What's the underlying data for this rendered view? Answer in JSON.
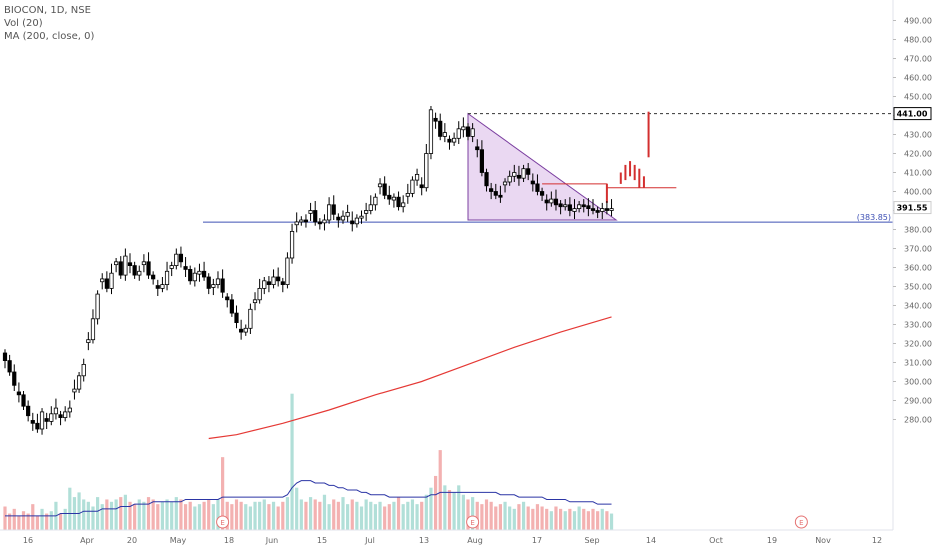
{
  "legend": {
    "symbol": "BIOCON, 1D, NSE",
    "volume": "Vol (20)",
    "moving_average": "MA (200, close, 0)"
  },
  "colors": {
    "up": "#ffffff",
    "down": "#000000",
    "wick": "#000000",
    "volume_up": "#a8dcd4",
    "volume_down": "#f2a8a8",
    "volume_ma": "#2b35a5",
    "ma200": "#e53935",
    "support_line": "#3f51b5",
    "triangle_fill": "#d8b8e8",
    "triangle_stroke": "#7b3fa0",
    "projection": "#d32f2f",
    "earnings": "#e57373"
  },
  "chart_data": {
    "type": "candlestick",
    "ylim": [
      270,
      495
    ],
    "x_tick_labels": [
      "16",
      "Apr",
      "20",
      "May",
      "18",
      "Jun",
      "15",
      "Jul",
      "13",
      "Aug",
      "17",
      "Sep",
      "14",
      "Oct",
      "19",
      "Nov",
      "12"
    ],
    "y_ticks": [
      280,
      290,
      300,
      310,
      320,
      330,
      340,
      350,
      360,
      370,
      380,
      390,
      400,
      410,
      420,
      430,
      440,
      450,
      460,
      470,
      480,
      490
    ],
    "y_tick_labels": [
      "280.00",
      "290.00",
      "300.00",
      "310.00",
      "320.00",
      "330.00",
      "340.00",
      "350.00",
      "360.00",
      "370.00",
      "380.00",
      "390.00",
      "400.00",
      "410.00",
      "420.00",
      "430.00",
      "440.00",
      "450.00",
      "460.00",
      "470.00",
      "480.00",
      "490.00"
    ],
    "price_close": [
      311,
      305,
      298,
      293,
      287,
      282,
      278,
      275,
      284,
      279,
      283,
      286,
      281,
      284,
      286,
      296,
      303,
      309,
      322,
      333,
      346,
      354,
      349,
      357,
      363,
      356,
      366,
      361,
      356,
      358,
      363,
      356,
      354,
      349,
      351,
      358,
      361,
      367,
      363,
      359,
      353,
      357,
      358,
      355,
      349,
      351,
      354,
      347,
      343,
      336,
      331,
      326,
      328,
      338,
      343,
      349,
      353,
      351,
      355,
      353,
      351,
      365,
      379,
      384,
      385,
      384,
      390,
      384,
      383,
      385,
      393,
      388,
      385,
      387,
      389,
      383,
      386,
      387,
      390,
      393,
      397,
      404,
      398,
      396,
      397,
      392,
      394,
      399,
      406,
      409,
      402,
      420,
      443,
      437,
      429,
      431,
      426,
      428,
      433,
      434,
      429,
      433,
      422,
      410,
      403,
      400,
      398,
      397,
      405,
      408,
      410,
      407,
      412,
      409,
      404,
      400,
      398,
      394,
      396,
      393,
      392,
      393,
      390,
      391,
      393,
      392,
      391,
      390,
      389,
      391,
      390,
      391
    ],
    "volume": [
      10,
      7,
      9,
      6,
      8,
      7,
      11,
      6,
      9,
      7,
      8,
      12,
      7,
      9,
      18,
      14,
      16,
      13,
      12,
      10,
      14,
      11,
      13,
      12,
      13,
      14,
      15,
      12,
      11,
      13,
      12,
      14,
      13,
      11,
      12,
      13,
      12,
      14,
      13,
      11,
      12,
      10,
      11,
      12,
      13,
      11,
      13,
      31,
      12,
      11,
      13,
      12,
      11,
      10,
      12,
      12,
      13,
      11,
      12,
      10,
      12,
      14,
      58,
      18,
      13,
      12,
      14,
      13,
      12,
      15,
      11,
      13,
      12,
      14,
      11,
      13,
      12,
      10,
      13,
      12,
      11,
      12,
      10,
      11,
      12,
      14,
      11,
      12,
      13,
      11,
      12,
      15,
      18,
      23,
      34,
      19,
      17,
      16,
      19,
      15,
      13,
      14,
      12,
      11,
      13,
      12,
      10,
      11,
      12,
      10,
      9,
      11,
      12,
      10,
      9,
      11,
      10,
      9,
      8,
      10,
      9,
      8,
      9,
      8,
      10,
      9,
      8,
      9,
      8,
      9,
      8,
      7
    ],
    "volume_ma": [
      6,
      6,
      6,
      6,
      6,
      6,
      6,
      6,
      6,
      6,
      6,
      6,
      7,
      7,
      7,
      7,
      7,
      8,
      8,
      8,
      8,
      9,
      9,
      9,
      9,
      10,
      10,
      10,
      11,
      11,
      11,
      11,
      12,
      12,
      12,
      12,
      12,
      12,
      12,
      13,
      13,
      13,
      13,
      13,
      13,
      13,
      13,
      14,
      14,
      14,
      14,
      14,
      14,
      14,
      14,
      14,
      14,
      14,
      14,
      14,
      14,
      15,
      18,
      20,
      21,
      21,
      21,
      20,
      20,
      20,
      19,
      19,
      18,
      18,
      17,
      17,
      17,
      16,
      16,
      15,
      15,
      15,
      15,
      14,
      14,
      14,
      14,
      14,
      14,
      14,
      14,
      14,
      15,
      15,
      16,
      16,
      16,
      16,
      16,
      16,
      16,
      16,
      16,
      16,
      16,
      16,
      16,
      15,
      15,
      15,
      15,
      14,
      14,
      14,
      14,
      14,
      14,
      13,
      13,
      13,
      13,
      13,
      12,
      12,
      12,
      12,
      12,
      12,
      11,
      11,
      11,
      11
    ],
    "ma200": [
      {
        "i": 44,
        "v": 270
      },
      {
        "i": 50,
        "v": 272
      },
      {
        "i": 60,
        "v": 278
      },
      {
        "i": 70,
        "v": 285
      },
      {
        "i": 80,
        "v": 293
      },
      {
        "i": 90,
        "v": 300
      },
      {
        "i": 100,
        "v": 309
      },
      {
        "i": 110,
        "v": 318
      },
      {
        "i": 120,
        "v": 326
      },
      {
        "i": 131,
        "v": 334
      }
    ],
    "support_level": 383.85,
    "support_label": "(383.85)",
    "target_level": 441.0,
    "target_label": "441.00",
    "last_price": 391.55,
    "last_price_label": "391.55",
    "triangle": {
      "start_i": 100,
      "top": 441,
      "end_i": 132,
      "bottom": 385
    },
    "breakout_box": {
      "start_i": 116,
      "end_i": 145,
      "level": 402,
      "top": 404
    },
    "projection_bars": [
      {
        "i": 130,
        "low": 394,
        "high": 404
      },
      {
        "i": 133,
        "low": 404,
        "high": 410
      },
      {
        "i": 134,
        "low": 406,
        "high": 414
      },
      {
        "i": 135,
        "low": 408,
        "high": 416
      },
      {
        "i": 136,
        "low": 406,
        "high": 414
      },
      {
        "i": 137,
        "low": 402,
        "high": 412
      },
      {
        "i": 138,
        "low": 402,
        "high": 408
      },
      {
        "i": 139,
        "low": 418,
        "high": 442
      }
    ],
    "earnings_markers": [
      {
        "i": 47,
        "label": "E"
      },
      {
        "i": 101,
        "label": "E"
      },
      {
        "i": 172,
        "label": "E"
      }
    ]
  }
}
